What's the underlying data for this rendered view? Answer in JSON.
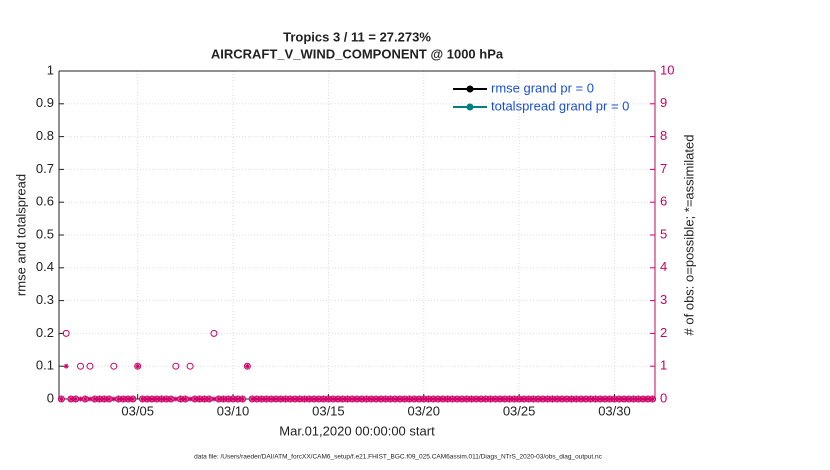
{
  "chart_data": {
    "type": "scatter",
    "title": "Tropics 3 / 11 = 27.273%",
    "subtitle": "AIRCRAFT_V_WIND_COMPONENT @ 1000 hPa",
    "ylabel": "rmse and totalspread",
    "y2label": "# of obs: o=possible; *=assimilated",
    "xlabel": "Mar.01,2020 00:00:00 start",
    "footnote": "data file: /Users/raeder/DAI/ATM_forcXX/CAM6_setup/f.e21.FHIST_BGC.f09_025.CAM6assim.011/Diags_NTrS_2020-03/obs_diag_output.nc",
    "grid": true,
    "legend": "upper right",
    "xlim": [
      0.875,
      32.125
    ],
    "xticks": [
      {
        "value": 5,
        "label": "03/05"
      },
      {
        "value": 10,
        "label": "03/10"
      },
      {
        "value": 15,
        "label": "03/15"
      },
      {
        "value": 20,
        "label": "03/20"
      },
      {
        "value": 25,
        "label": "03/25"
      },
      {
        "value": 30,
        "label": "03/30"
      }
    ],
    "ylim": [
      0,
      1
    ],
    "yticks": [
      0,
      0.1,
      0.2,
      0.3,
      0.4,
      0.5,
      0.6,
      0.7,
      0.8,
      0.9,
      1
    ],
    "y2lim": [
      0,
      10
    ],
    "y2ticks": [
      0,
      1,
      2,
      3,
      4,
      5,
      6,
      7,
      8,
      9,
      10
    ],
    "y2color": "#cc0066",
    "x": [
      1,
      1.25,
      1.5,
      1.75,
      2,
      2.25,
      2.5,
      2.75,
      3,
      3.25,
      3.5,
      3.75,
      4,
      4.25,
      4.5,
      4.75,
      5,
      5.25,
      5.5,
      5.75,
      6,
      6.25,
      6.5,
      6.75,
      7,
      7.25,
      7.5,
      7.75,
      8,
      8.25,
      8.5,
      8.75,
      9,
      9.25,
      9.5,
      9.75,
      10,
      10.25,
      10.5,
      10.75,
      11,
      11.25,
      11.5,
      11.75,
      12,
      12.25,
      12.5,
      12.75,
      13,
      13.25,
      13.5,
      13.75,
      14,
      14.25,
      14.5,
      14.75,
      15,
      15.25,
      15.5,
      15.75,
      16,
      16.25,
      16.5,
      16.75,
      17,
      17.25,
      17.5,
      17.75,
      18,
      18.25,
      18.5,
      18.75,
      19,
      19.25,
      19.5,
      19.75,
      20,
      20.25,
      20.5,
      20.75,
      21,
      21.25,
      21.5,
      21.75,
      22,
      22.25,
      22.5,
      22.75,
      23,
      23.25,
      23.5,
      23.75,
      24,
      24.25,
      24.5,
      24.75,
      25,
      25.25,
      25.5,
      25.75,
      26,
      26.25,
      26.5,
      26.75,
      27,
      27.25,
      27.5,
      27.75,
      28,
      28.25,
      28.5,
      28.75,
      29,
      29.25,
      29.5,
      29.75,
      30,
      30.25,
      30.5,
      30.75,
      31,
      31.25,
      31.5,
      31.75,
      32
    ],
    "series": [
      {
        "name": "rmse grand pr = 0",
        "color": "#000000",
        "marker": "line",
        "values": [
          null,
          null,
          null,
          null,
          null,
          null,
          null,
          null,
          null,
          null,
          null,
          null,
          null,
          null,
          null,
          null,
          null,
          null,
          null,
          null,
          null,
          null,
          null,
          null,
          null,
          null,
          null,
          null,
          null,
          null,
          null,
          null,
          null,
          null,
          null,
          null,
          null,
          null,
          null,
          null,
          null,
          null,
          null,
          null,
          null,
          null,
          null,
          null,
          null,
          null,
          null,
          null,
          null,
          null,
          null,
          null,
          null,
          null,
          null,
          null,
          null,
          null,
          null,
          null,
          null,
          null,
          null,
          null,
          null,
          null,
          null,
          null,
          null,
          null,
          null,
          null,
          null,
          null,
          null,
          null,
          null,
          null,
          null,
          null,
          null,
          null,
          null,
          null,
          null,
          null,
          null,
          null,
          null,
          null,
          null,
          null,
          null,
          null,
          null,
          null,
          null,
          null,
          null,
          null,
          null,
          null,
          null,
          null,
          null,
          null,
          null,
          null,
          null,
          null,
          null,
          null,
          null,
          null,
          null,
          null,
          null,
          null,
          null,
          null,
          null
        ]
      },
      {
        "name": "totalspread grand pr = 0",
        "color": "#008080",
        "marker": "line",
        "values": [
          null,
          null,
          null,
          null,
          null,
          null,
          null,
          null,
          null,
          null,
          null,
          null,
          null,
          null,
          null,
          null,
          null,
          null,
          null,
          null,
          null,
          null,
          null,
          null,
          null,
          null,
          null,
          null,
          null,
          null,
          null,
          null,
          null,
          null,
          null,
          null,
          null,
          null,
          null,
          null,
          null,
          null,
          null,
          null,
          null,
          null,
          null,
          null,
          null,
          null,
          null,
          null,
          null,
          null,
          null,
          null,
          null,
          null,
          null,
          null,
          null,
          null,
          null,
          null,
          null,
          null,
          null,
          null,
          null,
          null,
          null,
          null,
          null,
          null,
          null,
          null,
          null,
          null,
          null,
          null,
          null,
          null,
          null,
          null,
          null,
          null,
          null,
          null,
          null,
          null,
          null,
          null,
          null,
          null,
          null,
          null,
          null,
          null,
          null,
          null,
          null,
          null,
          null,
          null,
          null,
          null,
          null,
          null,
          null,
          null,
          null,
          null,
          null,
          null,
          null,
          null,
          null,
          null,
          null,
          null,
          null,
          null,
          null,
          null,
          null
        ]
      },
      {
        "color": "#cc0066",
        "marker": "circle",
        "axis": "y2",
        "values": [
          0,
          2,
          0,
          0,
          1,
          0,
          1,
          0,
          0,
          0,
          0,
          1,
          0,
          0,
          0,
          0,
          1,
          0,
          0,
          0,
          0,
          0,
          0,
          0,
          1,
          0,
          0,
          1,
          0,
          0,
          0,
          0,
          2,
          0,
          0,
          0,
          0,
          0,
          0,
          1,
          0,
          0,
          0,
          0,
          0,
          0,
          0,
          0,
          0,
          0,
          0,
          0,
          0,
          0,
          0,
          0,
          0,
          0,
          0,
          0,
          0,
          0,
          0,
          0,
          0,
          0,
          0,
          0,
          0,
          0,
          0,
          0,
          0,
          0,
          0,
          0,
          0,
          0,
          0,
          0,
          0,
          0,
          0,
          0,
          0,
          0,
          0,
          0,
          0,
          0,
          0,
          0,
          0,
          0,
          0,
          0,
          0,
          0,
          0,
          0,
          0,
          0,
          0,
          0,
          0,
          0,
          0,
          0,
          0,
          0,
          0,
          0,
          0,
          0,
          0,
          0,
          0,
          0,
          0,
          0,
          0,
          0,
          0,
          0,
          0
        ]
      },
      {
        "color": "#cc0066",
        "marker": "star",
        "axis": "y2",
        "values": [
          0,
          1,
          0,
          0,
          0,
          0,
          0,
          0,
          0,
          0,
          0,
          0,
          0,
          0,
          0,
          0,
          1,
          0,
          0,
          0,
          0,
          0,
          0,
          0,
          0,
          0,
          0,
          0,
          0,
          0,
          0,
          0,
          0,
          0,
          0,
          0,
          0,
          0,
          0,
          1,
          0,
          0,
          0,
          0,
          0,
          0,
          0,
          0,
          0,
          0,
          0,
          0,
          0,
          0,
          0,
          0,
          0,
          0,
          0,
          0,
          0,
          0,
          0,
          0,
          0,
          0,
          0,
          0,
          0,
          0,
          0,
          0,
          0,
          0,
          0,
          0,
          0,
          0,
          0,
          0,
          0,
          0,
          0,
          0,
          0,
          0,
          0,
          0,
          0,
          0,
          0,
          0,
          0,
          0,
          0,
          0,
          0,
          0,
          0,
          0,
          0,
          0,
          0,
          0,
          0,
          0,
          0,
          0,
          0,
          0,
          0,
          0,
          0,
          0,
          0,
          0,
          0,
          0,
          0,
          0,
          0,
          0,
          0,
          0,
          0
        ]
      }
    ]
  }
}
